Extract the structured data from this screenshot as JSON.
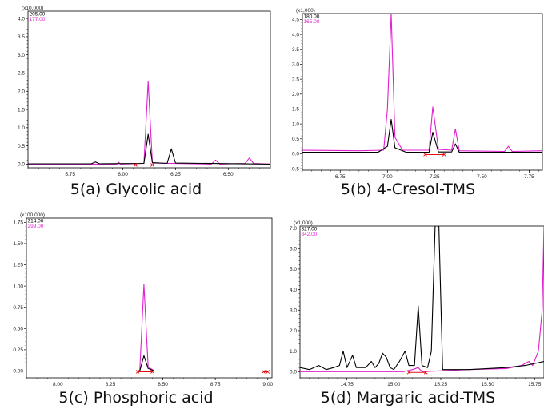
{
  "chart_data": [
    {
      "type": "line",
      "caption": "5(a) Glycolic acid",
      "multiplier": "(x10,000)",
      "xticks": [
        "5.75",
        "6.00",
        "6.25",
        "6.50"
      ],
      "xtick_values": [
        5.75,
        6.0,
        6.25,
        6.5
      ],
      "yticks": [
        "0.0",
        "0.5",
        "1.0",
        "1.5",
        "2.0",
        "2.5",
        "3.0",
        "3.5",
        "4.0"
      ],
      "xlim": [
        5.55,
        6.7
      ],
      "ylim": [
        -0.1,
        4.2
      ],
      "series": [
        {
          "name": "205.00",
          "color": "#000000",
          "points": [
            [
              5.55,
              0.01
            ],
            [
              5.85,
              0.01
            ],
            [
              5.87,
              0.06
            ],
            [
              5.89,
              0.01
            ],
            [
              6.1,
              0.02
            ],
            [
              6.12,
              0.82
            ],
            [
              6.14,
              0.04
            ],
            [
              6.21,
              0.02
            ],
            [
              6.23,
              0.42
            ],
            [
              6.25,
              0.03
            ],
            [
              6.7,
              0.0
            ]
          ]
        },
        {
          "name": "177.00",
          "color": "#e020d0",
          "points": [
            [
              5.55,
              0.0
            ],
            [
              5.97,
              0.0
            ],
            [
              5.98,
              0.05
            ],
            [
              5.99,
              0.0
            ],
            [
              6.1,
              0.02
            ],
            [
              6.12,
              2.27
            ],
            [
              6.14,
              0.03
            ],
            [
              6.42,
              0.0
            ],
            [
              6.44,
              0.11
            ],
            [
              6.46,
              0.0
            ],
            [
              6.58,
              0.02
            ],
            [
              6.6,
              0.17
            ],
            [
              6.62,
              0.02
            ],
            [
              6.7,
              0.0
            ]
          ]
        }
      ],
      "integration_marks": [
        6.06,
        6.14
      ]
    },
    {
      "type": "line",
      "caption": "5(b) 4-Cresol-TMS",
      "multiplier": "(x1,000)",
      "xticks": [
        "6.75",
        "7.00",
        "7.25",
        "7.50",
        "7.75"
      ],
      "xtick_values": [
        6.75,
        7.0,
        7.25,
        7.5,
        7.75
      ],
      "yticks": [
        "-0.5",
        "0.0",
        "0.5",
        "1.0",
        "1.5",
        "2.0",
        "2.5",
        "3.0",
        "3.5",
        "4.0",
        "4.5"
      ],
      "xlim": [
        6.55,
        7.82
      ],
      "ylim": [
        -0.55,
        4.7
      ],
      "series": [
        {
          "name": "180.00",
          "color": "#000000",
          "points": [
            [
              6.55,
              0.05
            ],
            [
              6.95,
              0.05
            ],
            [
              7.0,
              0.25
            ],
            [
              7.02,
              1.15
            ],
            [
              7.04,
              0.2
            ],
            [
              7.1,
              0.05
            ],
            [
              7.22,
              0.05
            ],
            [
              7.24,
              0.72
            ],
            [
              7.27,
              0.06
            ],
            [
              7.34,
              0.06
            ],
            [
              7.36,
              0.33
            ],
            [
              7.38,
              0.05
            ],
            [
              7.82,
              0.05
            ]
          ]
        },
        {
          "name": "165.00",
          "color": "#e020d0",
          "points": [
            [
              6.55,
              0.12
            ],
            [
              6.85,
              0.1
            ],
            [
              6.98,
              0.12
            ],
            [
              7.0,
              1.5
            ],
            [
              7.02,
              4.7
            ],
            [
              7.04,
              0.55
            ],
            [
              7.08,
              0.12
            ],
            [
              7.22,
              0.12
            ],
            [
              7.24,
              1.57
            ],
            [
              7.27,
              0.15
            ],
            [
              7.34,
              0.12
            ],
            [
              7.36,
              0.83
            ],
            [
              7.38,
              0.1
            ],
            [
              7.62,
              0.08
            ],
            [
              7.64,
              0.25
            ],
            [
              7.66,
              0.08
            ],
            [
              7.82,
              0.1
            ]
          ]
        }
      ],
      "integration_marks": [
        7.2,
        7.3
      ]
    },
    {
      "type": "line",
      "caption": "5(c) Phosphoric acid",
      "multiplier": "(x100,000)",
      "xticks": [
        "8.00",
        "8.25",
        "8.50",
        "8.75",
        "9.00"
      ],
      "xtick_values": [
        8.0,
        8.25,
        8.5,
        8.75,
        9.0
      ],
      "yticks": [
        "0.00",
        "0.25",
        "0.50",
        "0.75",
        "1.00",
        "1.25",
        "1.50",
        "1.75"
      ],
      "xlim": [
        7.85,
        9.02
      ],
      "ylim": [
        -0.08,
        1.8
      ],
      "series": [
        {
          "name": "314.00",
          "color": "#000000",
          "points": [
            [
              7.85,
              0.0
            ],
            [
              8.39,
              0.0
            ],
            [
              8.41,
              0.18
            ],
            [
              8.43,
              0.03
            ],
            [
              8.46,
              0.0
            ],
            [
              9.02,
              0.0
            ]
          ]
        },
        {
          "name": "299.00",
          "color": "#e020d0",
          "points": [
            [
              7.85,
              0.0
            ],
            [
              8.39,
              0.0
            ],
            [
              8.41,
              1.02
            ],
            [
              8.43,
              0.05
            ],
            [
              8.46,
              0.0
            ],
            [
              9.02,
              0.0
            ]
          ]
        }
      ],
      "integration_marks": [
        8.38,
        8.45,
        8.98,
        9.0
      ]
    },
    {
      "type": "line",
      "caption": "5(d) Margaric acid-TMS",
      "multiplier": "(x1,000)",
      "xticks": [
        "14.75",
        "15.00",
        "15.25",
        "15.50",
        "15.75"
      ],
      "xtick_values": [
        14.75,
        15.0,
        15.25,
        15.5,
        15.75
      ],
      "yticks": [
        "0.0",
        "1.0",
        "2.0",
        "3.0",
        "4.0",
        "5.0",
        "6.0",
        "7.0"
      ],
      "xlim": [
        14.5,
        15.8
      ],
      "ylim": [
        -0.3,
        7.1
      ],
      "series": [
        {
          "name": "327.00",
          "color": "#000000",
          "points": [
            [
              14.5,
              0.2
            ],
            [
              14.55,
              0.1
            ],
            [
              14.6,
              0.3
            ],
            [
              14.64,
              0.1
            ],
            [
              14.68,
              0.2
            ],
            [
              14.71,
              0.3
            ],
            [
              14.73,
              1.0
            ],
            [
              14.75,
              0.2
            ],
            [
              14.78,
              0.8
            ],
            [
              14.8,
              0.2
            ],
            [
              14.85,
              0.2
            ],
            [
              14.88,
              0.5
            ],
            [
              14.9,
              0.2
            ],
            [
              14.92,
              0.4
            ],
            [
              14.94,
              0.9
            ],
            [
              14.96,
              0.7
            ],
            [
              14.98,
              0.2
            ],
            [
              15.0,
              0.1
            ],
            [
              15.03,
              0.5
            ],
            [
              15.06,
              1.0
            ],
            [
              15.08,
              0.3
            ],
            [
              15.11,
              0.3
            ],
            [
              15.13,
              3.2
            ],
            [
              15.15,
              0.3
            ],
            [
              15.18,
              0.2
            ],
            [
              15.2,
              1.0
            ],
            [
              15.22,
              7.1
            ],
            [
              15.24,
              7.1
            ],
            [
              15.26,
              0.1
            ],
            [
              15.4,
              0.1
            ],
            [
              15.6,
              0.2
            ],
            [
              15.7,
              0.3
            ],
            [
              15.8,
              0.5
            ]
          ]
        },
        {
          "name": "342.00",
          "color": "#e020d0",
          "points": [
            [
              14.5,
              0.0
            ],
            [
              15.05,
              0.0
            ],
            [
              15.1,
              0.1
            ],
            [
              15.13,
              0.2
            ],
            [
              15.15,
              0.0
            ],
            [
              15.4,
              0.1
            ],
            [
              15.6,
              0.15
            ],
            [
              15.68,
              0.3
            ],
            [
              15.72,
              0.5
            ],
            [
              15.74,
              0.3
            ],
            [
              15.77,
              1.0
            ],
            [
              15.79,
              3.0
            ],
            [
              15.8,
              7.1
            ]
          ]
        }
      ],
      "integration_marks": [
        15.08,
        15.17
      ]
    }
  ]
}
